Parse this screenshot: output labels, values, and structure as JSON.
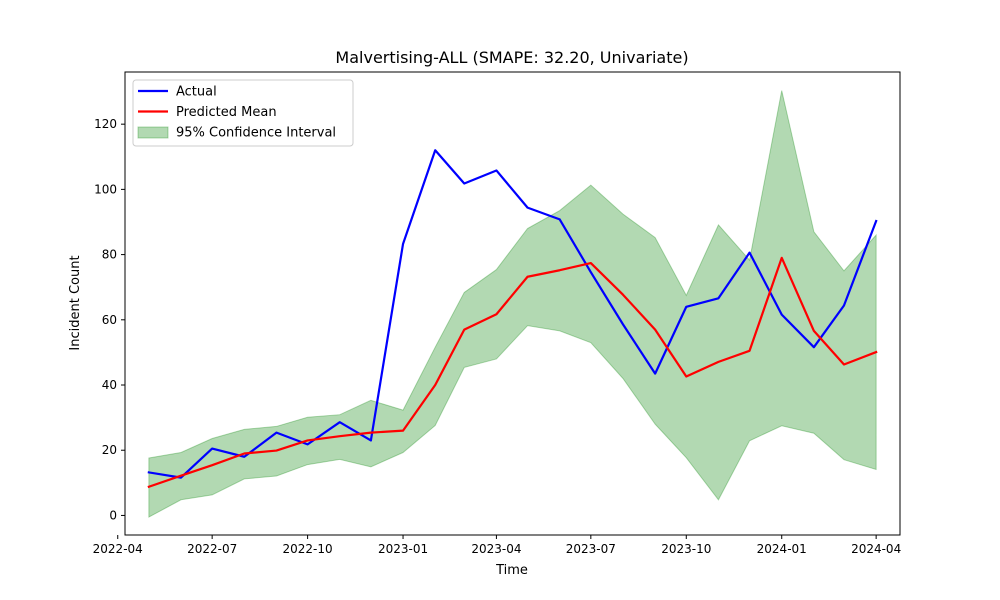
{
  "chart_data": {
    "type": "line",
    "title": "Malvertising-ALL (SMAPE: 32.20, Univariate)",
    "xlabel": "Time",
    "ylabel": "Incident Count",
    "xlim": [
      "2022-04-08",
      "2024-04-24"
    ],
    "ylim": [
      -6,
      136
    ],
    "grid": false,
    "legend_position": "top-left",
    "x_ticks": [
      "2022-04-01",
      "2022-07-01",
      "2022-10-01",
      "2023-01-01",
      "2023-04-01",
      "2023-07-01",
      "2023-10-01",
      "2024-01-01",
      "2024-04-01"
    ],
    "x_tick_labels": [
      "2022-04",
      "2022-07",
      "2022-10",
      "2023-01",
      "2023-04",
      "2023-07",
      "2023-10",
      "2024-01",
      "2024-04"
    ],
    "y_ticks": [
      0,
      20,
      40,
      60,
      80,
      100,
      120
    ],
    "x": [
      "2022-05-01",
      "2022-06-01",
      "2022-07-01",
      "2022-08-01",
      "2022-09-01",
      "2022-10-01",
      "2022-11-01",
      "2022-12-01",
      "2023-01-01",
      "2023-02-01",
      "2023-03-01",
      "2023-04-01",
      "2023-05-01",
      "2023-06-01",
      "2023-07-01",
      "2023-08-01",
      "2023-09-01",
      "2023-10-01",
      "2023-11-01",
      "2023-12-01",
      "2024-01-01",
      "2024-02-01",
      "2024-03-01",
      "2024-04-01"
    ],
    "series": [
      {
        "name": "Actual",
        "color": "#0000ff",
        "values": [
          13.2,
          11.6,
          20.5,
          18.0,
          25.4,
          21.8,
          28.6,
          23.0,
          83.3,
          112.0,
          101.8,
          105.8,
          94.4,
          90.8,
          74.6,
          58.6,
          43.5,
          64.0,
          66.6,
          80.6,
          61.6,
          51.6,
          64.4,
          90.3
        ]
      },
      {
        "name": "Predicted Mean",
        "color": "#ff0000",
        "values": [
          8.8,
          12.2,
          15.4,
          19.0,
          19.9,
          23.0,
          24.3,
          25.4,
          26.0,
          40.0,
          57.0,
          61.7,
          73.2,
          75.2,
          77.4,
          67.7,
          57.0,
          42.6,
          47.1,
          50.5,
          79.0,
          56.6,
          46.3,
          50.1
        ]
      }
    ],
    "confidence_interval": {
      "name": "95% Confidence Interval",
      "color": "#008000",
      "lower": [
        -0.5,
        4.8,
        6.3,
        11.2,
        12.1,
        15.6,
        17.2,
        14.9,
        19.3,
        27.6,
        45.4,
        48.0,
        58.2,
        56.6,
        53.0,
        42.0,
        28.0,
        17.7,
        4.8,
        22.9,
        27.5,
        25.2,
        17.1,
        14.1
      ],
      "upper": [
        17.6,
        19.3,
        23.6,
        26.4,
        27.3,
        30.1,
        30.9,
        35.3,
        32.3,
        51.6,
        68.4,
        75.4,
        88.0,
        93.5,
        101.3,
        92.4,
        85.2,
        67.5,
        89.1,
        78.3,
        130.3,
        87.0,
        75.0,
        86.0
      ]
    }
  }
}
